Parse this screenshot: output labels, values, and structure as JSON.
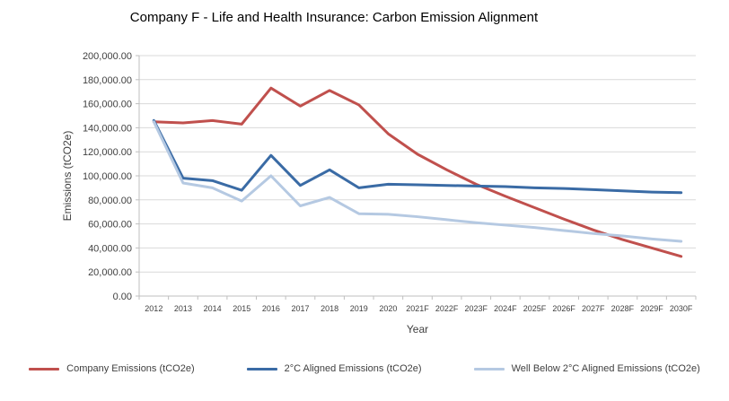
{
  "chart_data": {
    "type": "line",
    "title": "Company F - Life and Health Insurance: Carbon Emission Alignment",
    "xlabel": "Year",
    "ylabel": "Emissions (tCO2e)",
    "ylim": [
      0,
      200000
    ],
    "y_tick_step": 20000,
    "y_tick_labels": [
      "0.00",
      "20,000.00",
      "40,000.00",
      "60,000.00",
      "80,000.00",
      "100,000.00",
      "120,000.00",
      "140,000.00",
      "160,000.00",
      "180,000.00",
      "200,000.00"
    ],
    "categories": [
      "2012",
      "2013",
      "2014",
      "2015",
      "2016",
      "2017",
      "2018",
      "2019",
      "2020",
      "2021F",
      "2022F",
      "2023F",
      "2024F",
      "2025F",
      "2026F",
      "2027F",
      "2028F",
      "2029F",
      "2030F"
    ],
    "series": [
      {
        "name": "Company Emissions (tCO2e)",
        "color": "#C0504D",
        "values": [
          145000,
          144000,
          146000,
          143000,
          173000,
          158000,
          171000,
          159000,
          135000,
          118000,
          105000,
          93000,
          83000,
          73500,
          64000,
          55000,
          47000,
          40000,
          33000
        ]
      },
      {
        "name": "2°C Aligned Emissions (tCO2e)",
        "color": "#3A6BA5",
        "values": [
          146000,
          98000,
          96000,
          88000,
          117000,
          92000,
          105000,
          90000,
          93000,
          92500,
          92000,
          91500,
          91000,
          90000,
          89500,
          88500,
          87500,
          86500,
          86000
        ]
      },
      {
        "name": "Well Below 2°C Aligned Emissions (tCO2e)",
        "color": "#B5C9E2",
        "values": [
          145000,
          94000,
          90000,
          79000,
          100000,
          75000,
          82000,
          68500,
          68000,
          66000,
          63500,
          61000,
          59000,
          57000,
          54500,
          52000,
          50000,
          47500,
          45500
        ]
      }
    ],
    "legend_position": "bottom",
    "grid": true
  },
  "colors": {
    "gridline": "#D9D9D9",
    "axis": "#BFBFBF",
    "tick_text": "#404040"
  }
}
